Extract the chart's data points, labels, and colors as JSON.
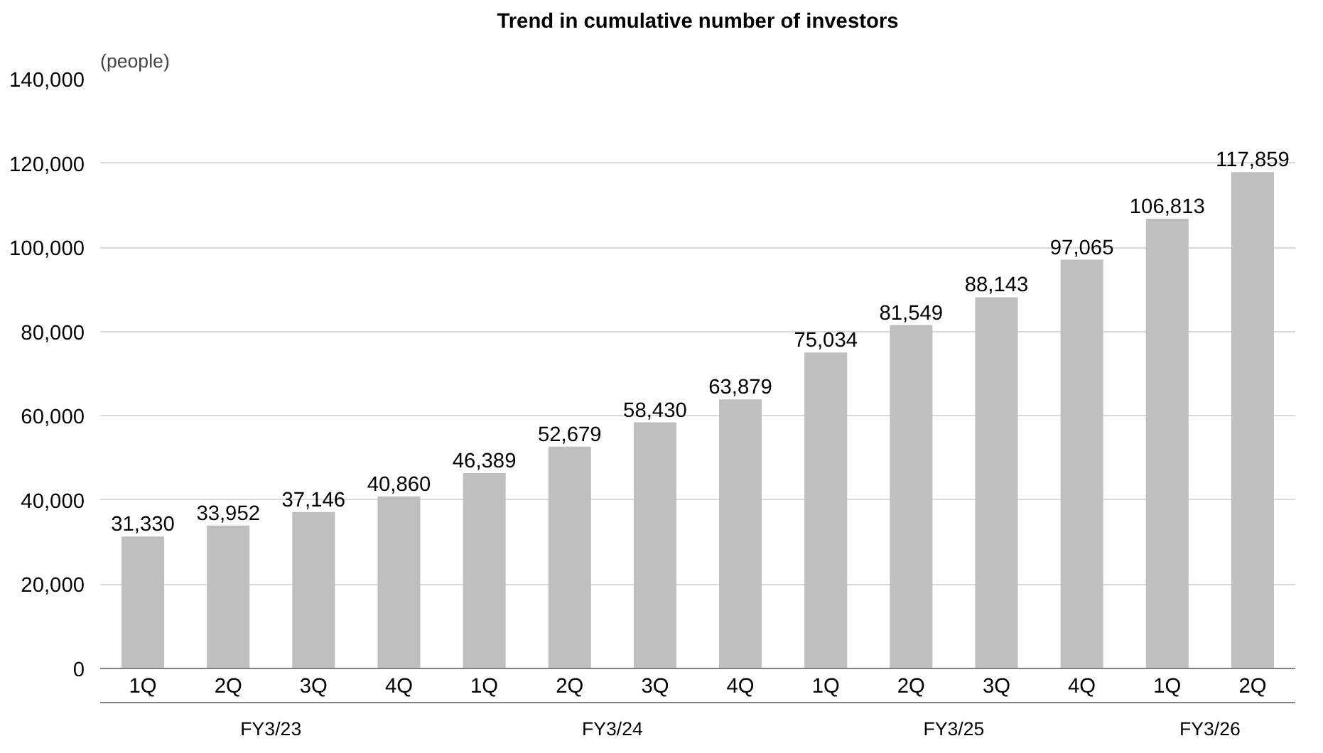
{
  "chart_data": {
    "type": "bar",
    "title": "Trend in cumulative number of investors",
    "ylabel": "(people)",
    "categories": [
      "1Q",
      "2Q",
      "3Q",
      "4Q",
      "1Q",
      "2Q",
      "3Q",
      "4Q",
      "1Q",
      "2Q",
      "3Q",
      "4Q",
      "1Q",
      "2Q"
    ],
    "annotations": [
      "FY3/23",
      "FY3/24",
      "FY3/25",
      "FY3/26"
    ],
    "values": [
      31330,
      33952,
      37146,
      40860,
      46389,
      52679,
      58430,
      63879,
      75034,
      81549,
      88143,
      97065,
      106813,
      117859
    ],
    "value_labels": [
      "31,330",
      "33,952",
      "37,146",
      "40,860",
      "46,389",
      "52,679",
      "58,430",
      "63,879",
      "75,034",
      "81,549",
      "88,143",
      "97,065",
      "106,813",
      "117,859"
    ],
    "color": "#bfbfbf",
    "grid": "y",
    "ylim": [
      0,
      140000
    ],
    "yticks": [
      0,
      {
        "value": 20000,
        "label": "20,000"
      },
      {
        "value": 40000,
        "label": "40,000"
      },
      {
        "value": 60000,
        "label": "60,000"
      },
      {
        "value": 80000,
        "label": "80,000"
      },
      {
        "value": 100000,
        "label": "100,000"
      },
      {
        "value": 120000,
        "label": "120,000"
      },
      {
        "value": 140000,
        "label": "140,000"
      }
    ]
  }
}
